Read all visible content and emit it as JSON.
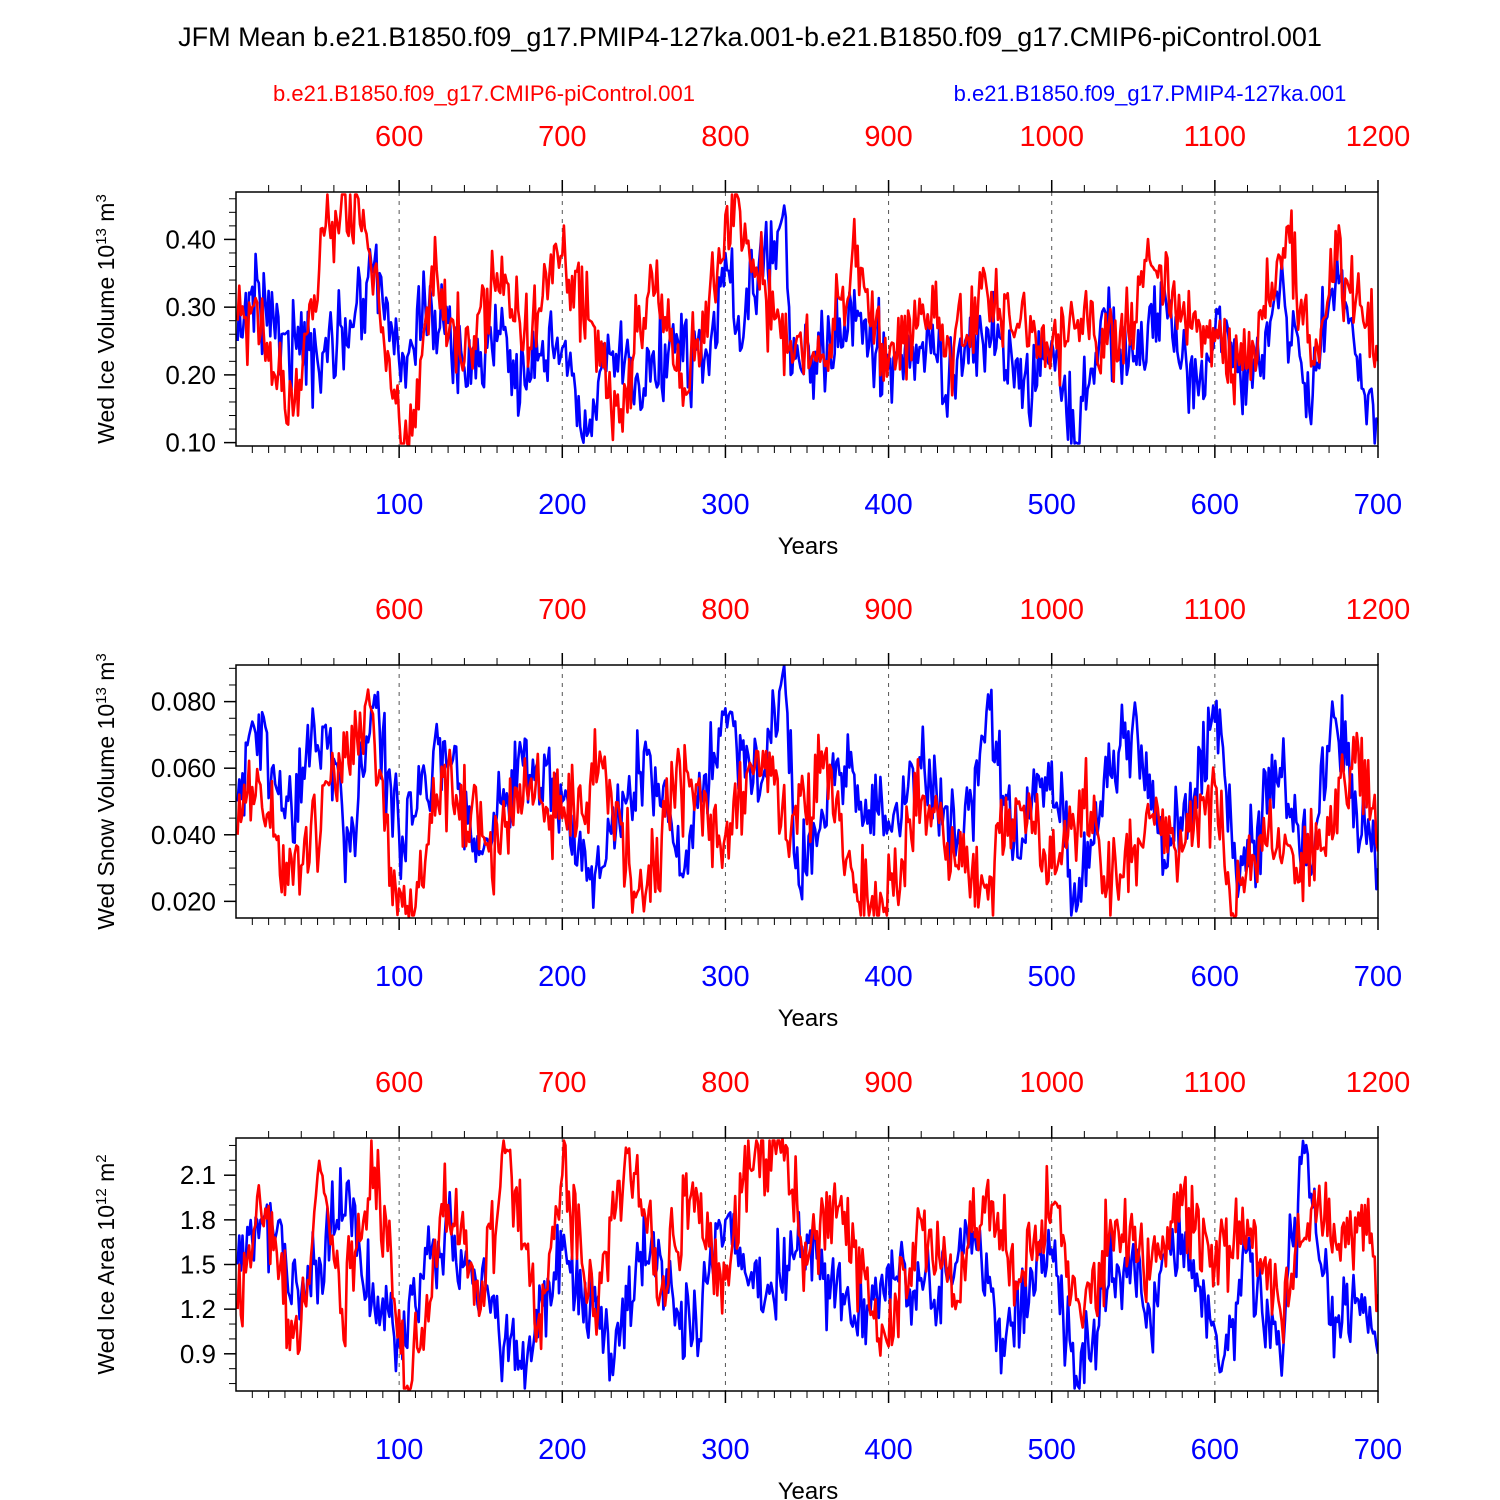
{
  "figure": {
    "title": "JFM Mean b.e21.B1850.f09_g17.PMIP4-127ka.001-b.e21.B1850.f09_g17.CMIP6-piControl.001",
    "legend": {
      "red_label": "b.e21.B1850.f09_g17.CMIP6-piControl.001",
      "blue_label": "b.e21.B1850.f09_g17.PMIP4-127ka.001"
    },
    "colors": {
      "red": "#ff0000",
      "blue": "#0000ff",
      "axis": "#000000",
      "grid": "#555555"
    }
  },
  "chart_data": [
    {
      "type": "line",
      "ylabel_main": "Wed Ice Volume 10",
      "ylabel_exp": "13",
      "ylabel_unit": " m",
      "ylabel_unit_exp": "3",
      "xlabel": "Years",
      "xlim_bottom": [
        0,
        700
      ],
      "xlim_top": [
        500,
        1200
      ],
      "ylim": [
        0.095,
        0.47
      ],
      "yticks": [
        0.1,
        0.2,
        0.3,
        0.4
      ],
      "ytick_labels": [
        "0.10",
        "0.20",
        "0.30",
        "0.40"
      ],
      "yminor": [
        0.12,
        0.14,
        0.16,
        0.18,
        0.22,
        0.24,
        0.26,
        0.28,
        0.32,
        0.34,
        0.36,
        0.38,
        0.42,
        0.44,
        0.46
      ],
      "xticks_bottom": [
        100,
        200,
        300,
        400,
        500,
        600,
        700
      ],
      "xticks_top": [
        600,
        700,
        800,
        900,
        1000,
        1100,
        1200
      ],
      "series": [
        {
          "name": "b.e21.B1850.f09_g17.PMIP4-127ka.001",
          "color": "blue",
          "x": [
            1,
            10,
            30,
            50,
            70,
            85,
            100,
            120,
            140,
            160,
            180,
            200,
            215,
            230,
            250,
            270,
            290,
            300,
            310,
            320,
            336,
            340,
            360,
            380,
            400,
            420,
            440,
            460,
            480,
            500,
            515,
            530,
            550,
            570,
            590,
            600,
            620,
            640,
            660,
            675,
            690,
            700
          ],
          "y": [
            0.25,
            0.33,
            0.26,
            0.22,
            0.28,
            0.37,
            0.22,
            0.3,
            0.21,
            0.25,
            0.19,
            0.24,
            0.11,
            0.23,
            0.18,
            0.26,
            0.2,
            0.38,
            0.24,
            0.35,
            0.45,
            0.2,
            0.24,
            0.28,
            0.21,
            0.24,
            0.2,
            0.27,
            0.18,
            0.25,
            0.1,
            0.28,
            0.22,
            0.31,
            0.17,
            0.26,
            0.2,
            0.33,
            0.17,
            0.37,
            0.18,
            0.13
          ]
        },
        {
          "name": "b.e21.B1850.f09_g17.CMIP6-piControl.001",
          "color": "red",
          "x": [
            1,
            10,
            35,
            55,
            75,
            90,
            106,
            120,
            140,
            160,
            180,
            195,
            220,
            235,
            255,
            275,
            290,
            308,
            325,
            340,
            360,
            380,
            400,
            420,
            440,
            460,
            480,
            500,
            520,
            540,
            560,
            580,
            600,
            620,
            645,
            660,
            675,
            690,
            700
          ],
          "y": [
            0.28,
            0.3,
            0.14,
            0.42,
            0.46,
            0.27,
            0.09,
            0.36,
            0.22,
            0.35,
            0.24,
            0.39,
            0.27,
            0.13,
            0.35,
            0.18,
            0.31,
            0.46,
            0.31,
            0.25,
            0.23,
            0.36,
            0.22,
            0.29,
            0.24,
            0.33,
            0.27,
            0.24,
            0.3,
            0.22,
            0.37,
            0.29,
            0.25,
            0.21,
            0.42,
            0.22,
            0.37,
            0.3,
            0.22
          ]
        }
      ]
    },
    {
      "type": "line",
      "ylabel_main": "Wed Snow Volume 10",
      "ylabel_exp": "13",
      "ylabel_unit": " m",
      "ylabel_unit_exp": "3",
      "xlabel": "Years",
      "xlim_bottom": [
        0,
        700
      ],
      "xlim_top": [
        500,
        1200
      ],
      "ylim": [
        0.015,
        0.091
      ],
      "yticks": [
        0.02,
        0.04,
        0.06,
        0.08
      ],
      "ytick_labels": [
        "0.020",
        "0.040",
        "0.060",
        "0.080"
      ],
      "yminor": [
        0.025,
        0.03,
        0.035,
        0.045,
        0.05,
        0.055,
        0.065,
        0.07,
        0.075,
        0.085,
        0.09
      ],
      "xticks_bottom": [
        100,
        200,
        300,
        400,
        500,
        600,
        700
      ],
      "xticks_top": [
        600,
        700,
        800,
        900,
        1000,
        1100,
        1200
      ],
      "series": [
        {
          "name": "b.e21.B1850.f09_g17.PMIP4-127ka.001",
          "color": "blue",
          "x": [
            1,
            10,
            30,
            55,
            70,
            85,
            100,
            125,
            150,
            175,
            200,
            220,
            250,
            275,
            300,
            320,
            336,
            345,
            370,
            400,
            420,
            445,
            460,
            480,
            500,
            515,
            530,
            550,
            570,
            600,
            615,
            640,
            660,
            672,
            690,
            700
          ],
          "y": [
            0.05,
            0.074,
            0.045,
            0.073,
            0.035,
            0.082,
            0.04,
            0.069,
            0.035,
            0.065,
            0.05,
            0.028,
            0.065,
            0.03,
            0.078,
            0.05,
            0.091,
            0.025,
            0.058,
            0.044,
            0.06,
            0.035,
            0.077,
            0.033,
            0.062,
            0.017,
            0.05,
            0.075,
            0.03,
            0.074,
            0.025,
            0.06,
            0.03,
            0.08,
            0.04,
            0.03
          ]
        },
        {
          "name": "b.e21.B1850.f09_g17.CMIP6-piControl.001",
          "color": "red",
          "x": [
            1,
            15,
            35,
            60,
            82,
            95,
            106,
            130,
            155,
            180,
            200,
            225,
            250,
            270,
            300,
            320,
            340,
            360,
            380,
            398,
            420,
            440,
            460,
            480,
            500,
            520,
            540,
            560,
            580,
            600,
            612,
            630,
            650,
            670,
            688,
            700
          ],
          "y": [
            0.04,
            0.055,
            0.025,
            0.06,
            0.079,
            0.03,
            0.015,
            0.06,
            0.035,
            0.055,
            0.045,
            0.06,
            0.017,
            0.06,
            0.04,
            0.065,
            0.04,
            0.06,
            0.025,
            0.018,
            0.05,
            0.035,
            0.025,
            0.05,
            0.03,
            0.048,
            0.025,
            0.045,
            0.035,
            0.055,
            0.015,
            0.045,
            0.03,
            0.04,
            0.066,
            0.035
          ]
        }
      ]
    },
    {
      "type": "line",
      "ylabel_main": "Wed Ice Area 10",
      "ylabel_exp": "12",
      "ylabel_unit": " m",
      "ylabel_unit_exp": "2",
      "xlabel": "Years",
      "xlim_bottom": [
        0,
        700
      ],
      "xlim_top": [
        500,
        1200
      ],
      "ylim": [
        0.65,
        2.35
      ],
      "yticks": [
        0.9,
        1.2,
        1.5,
        1.8,
        2.1
      ],
      "ytick_labels": [
        "0.9",
        "1.2",
        "1.5",
        "1.8",
        "2.1"
      ],
      "yminor": [
        0.7,
        0.8,
        1.0,
        1.1,
        1.3,
        1.4,
        1.6,
        1.7,
        1.9,
        2.0,
        2.2,
        2.3
      ],
      "xticks_bottom": [
        100,
        200,
        300,
        400,
        500,
        600,
        700
      ],
      "xticks_top": [
        600,
        700,
        800,
        900,
        1000,
        1100,
        1200
      ],
      "series": [
        {
          "name": "b.e21.B1850.f09_g17.PMIP4-127ka.001",
          "color": "blue",
          "x": [
            1,
            15,
            40,
            70,
            85,
            100,
            130,
            150,
            175,
            200,
            230,
            255,
            280,
            300,
            325,
            350,
            380,
            400,
            430,
            450,
            470,
            500,
            515,
            540,
            560,
            580,
            605,
            620,
            640,
            655,
            670,
            690,
            700
          ],
          "y": [
            1.5,
            1.8,
            1.3,
            1.9,
            1.2,
            0.95,
            1.8,
            1.3,
            0.8,
            1.6,
            0.9,
            1.7,
            1.0,
            1.8,
            1.3,
            1.7,
            1.1,
            1.5,
            1.2,
            1.8,
            1.0,
            1.6,
            0.75,
            1.5,
            1.2,
            1.7,
            0.85,
            1.6,
            0.9,
            2.25,
            1.1,
            1.3,
            0.9
          ]
        },
        {
          "name": "b.e21.B1850.f09_g17.CMIP6-piControl.001",
          "color": "red",
          "x": [
            1,
            15,
            38,
            50,
            65,
            85,
            106,
            130,
            150,
            165,
            185,
            200,
            220,
            240,
            260,
            280,
            300,
            315,
            335,
            350,
            370,
            400,
            420,
            440,
            460,
            480,
            500,
            520,
            540,
            560,
            580,
            600,
            620,
            640,
            660,
            675,
            690,
            700
          ],
          "y": [
            1.2,
            1.9,
            0.9,
            2.1,
            1.2,
            2.15,
            0.65,
            1.9,
            1.2,
            2.25,
            1.1,
            2.1,
            1.2,
            2.25,
            1.3,
            2.05,
            1.4,
            2.15,
            2.35,
            1.5,
            1.9,
            0.95,
            1.8,
            1.3,
            2.0,
            1.4,
            1.9,
            1.2,
            1.8,
            1.4,
            1.9,
            1.5,
            1.8,
            1.2,
            1.9,
            1.6,
            1.9,
            1.3
          ]
        }
      ]
    }
  ]
}
